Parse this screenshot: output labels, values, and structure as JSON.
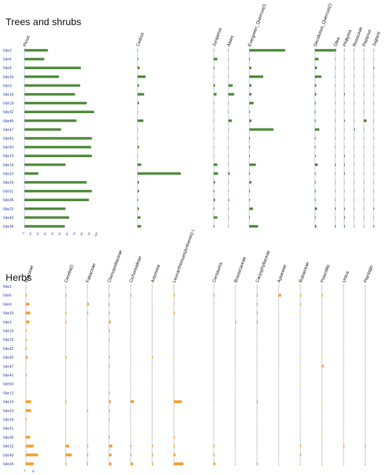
{
  "chart_data": [
    {
      "type": "bar",
      "title": "Trees and shrubs",
      "color": "#4e8a3a",
      "sites": [
        "Site2",
        "Site6",
        "Site9",
        "Site33",
        "Site3",
        "Site16",
        "Site19",
        "Site32",
        "Site45",
        "Site47",
        "Site41",
        "Site50",
        "Site13",
        "Site14",
        "Site23",
        "Site29",
        "Site31",
        "Site35",
        "Site22",
        "Site49",
        "Site34"
      ],
      "series": [
        {
          "name": "Pinus",
          "values": [
            32,
            27,
            77,
            47,
            76,
            69,
            85,
            95,
            71,
            50,
            92,
            91,
            92,
            56,
            19,
            85,
            92,
            88,
            56,
            61,
            55
          ]
        },
        {
          "name": "Cedrus",
          "values": [
            0,
            1,
            3,
            11,
            2,
            9,
            2,
            0,
            8,
            0,
            0,
            2,
            0,
            5,
            59,
            2,
            2,
            1,
            2,
            4,
            5
          ]
        },
        {
          "name": "Juniperus",
          "values": [
            0,
            5,
            1,
            0,
            2,
            4,
            0,
            0,
            0,
            0,
            0,
            0,
            0,
            5,
            6,
            2,
            1,
            2,
            1,
            5,
            1
          ]
        },
        {
          "name": "Abies",
          "values": [
            0,
            0,
            0,
            0,
            6,
            8,
            0,
            0,
            5,
            0,
            0,
            0,
            0,
            0,
            2,
            0,
            0,
            1,
            0,
            0,
            0
          ]
        },
        {
          "name": "Evergreen_Quercus(I)",
          "values": [
            49,
            1,
            3,
            19,
            3,
            3,
            6,
            1,
            3,
            33,
            1,
            1,
            1,
            9,
            1,
            3,
            1,
            1,
            5,
            1,
            12
          ]
        },
        {
          "name": "Deciduous_Quercus(I)",
          "values": [
            29,
            5,
            3,
            9,
            2,
            2,
            1,
            1,
            1,
            6,
            1,
            1,
            1,
            4,
            1,
            1,
            1,
            1,
            3,
            1,
            2
          ]
        },
        {
          "name": "Olea",
          "values": [
            1,
            0,
            0,
            0,
            0,
            0,
            0,
            0,
            0,
            0,
            0,
            0,
            0,
            1,
            0,
            0,
            0,
            0,
            1,
            0,
            1
          ]
        },
        {
          "name": "Phillyrea",
          "values": [
            0,
            0,
            0,
            0,
            0,
            1,
            0,
            0,
            1,
            0,
            0,
            0,
            1,
            1,
            1,
            0,
            0,
            0,
            1,
            1,
            1
          ]
        },
        {
          "name": "Rosaceae",
          "values": [
            0,
            0,
            0,
            0,
            0,
            0,
            0,
            0,
            0,
            1,
            0,
            0,
            0,
            0,
            0,
            0,
            0,
            0,
            0,
            0,
            0
          ]
        },
        {
          "name": "Platanus",
          "values": [
            0,
            0,
            0,
            0,
            0,
            0,
            0,
            0,
            4,
            0,
            0,
            0,
            0,
            0,
            0,
            0,
            0,
            0,
            0,
            0,
            0
          ]
        },
        {
          "name": "Juglans",
          "values": [
            0,
            0,
            1,
            0,
            0,
            0,
            0,
            0,
            0,
            0,
            0,
            0,
            0,
            0,
            0,
            0,
            0,
            0,
            1,
            0,
            1
          ]
        }
      ],
      "tick_labels": [
        "0",
        "10",
        "20",
        "30",
        "40",
        "50",
        "60",
        "70",
        "80",
        "90",
        "100"
      ]
    },
    {
      "type": "bar",
      "title": "Herbs",
      "color": "#f5a030",
      "sites": [
        "Site2",
        "Site6",
        "Site9",
        "Site33",
        "Site3",
        "Site16",
        "Site19",
        "Site32",
        "Site45",
        "Site47",
        "Site41",
        "Site50",
        "Site13",
        "Site14",
        "Site23",
        "Site29",
        "Site31",
        "Site35",
        "Site22",
        "Site49",
        "Site34"
      ],
      "series": [
        {
          "name": "Poaceae",
          "values": [
            0,
            1,
            4,
            5,
            4,
            1,
            1,
            1,
            2,
            0,
            1,
            0,
            0,
            6,
            6,
            1,
            0,
            5,
            9,
            14,
            9
          ]
        },
        {
          "name": "Cerelia(I)",
          "values": [
            0,
            1,
            0,
            1,
            1,
            0,
            0,
            0,
            1,
            0,
            0,
            0,
            0,
            1,
            0,
            0,
            0,
            0,
            4,
            7,
            1
          ]
        },
        {
          "name": "Fabaceae",
          "values": [
            0,
            0,
            2,
            1,
            0,
            0,
            0,
            0,
            0,
            0,
            0,
            0,
            0,
            0,
            1,
            0,
            0,
            0,
            1,
            1,
            1
          ]
        },
        {
          "name": "Chenopodiaceae",
          "values": [
            0,
            1,
            1,
            1,
            2,
            1,
            1,
            0,
            1,
            1,
            0,
            0,
            1,
            2,
            1,
            1,
            0,
            1,
            4,
            3,
            3
          ]
        },
        {
          "name": "Cichorioideae",
          "values": [
            0,
            1,
            0,
            0,
            0,
            0,
            0,
            0,
            0,
            0,
            0,
            0,
            0,
            4,
            0,
            0,
            0,
            0,
            1,
            1,
            3
          ]
        },
        {
          "name": "Artemisia",
          "values": [
            0,
            0,
            0,
            0,
            0,
            0,
            0,
            0,
            1,
            0,
            0,
            0,
            0,
            0,
            0,
            0,
            0,
            0,
            1,
            1,
            1
          ]
        },
        {
          "name": "Leucanthemum(Anthemis) t.",
          "values": [
            0,
            1,
            0,
            1,
            0,
            0,
            0,
            0,
            0,
            0,
            0,
            0,
            0,
            9,
            0,
            0,
            0,
            1,
            1,
            2,
            11
          ]
        },
        {
          "name": "Centaurea",
          "values": [
            0,
            1,
            0,
            0,
            0,
            0,
            0,
            0,
            0,
            0,
            0,
            0,
            0,
            0,
            0,
            0,
            0,
            0,
            1,
            1,
            2
          ]
        },
        {
          "name": "Brassicaceae",
          "values": [
            0,
            0,
            0,
            0,
            1,
            0,
            0,
            0,
            0,
            0,
            0,
            0,
            0,
            0,
            0,
            0,
            0,
            0,
            0,
            0,
            0
          ]
        },
        {
          "name": "Caryophyllaceae",
          "values": [
            0,
            1,
            1,
            1,
            1,
            0,
            0,
            0,
            0,
            0,
            0,
            0,
            0,
            1,
            0,
            0,
            0,
            0,
            0,
            0,
            1
          ]
        },
        {
          "name": "Apiaceae",
          "values": [
            0,
            3,
            0,
            0,
            0,
            0,
            0,
            0,
            0,
            0,
            0,
            0,
            0,
            0,
            0,
            0,
            0,
            0,
            0,
            0,
            0
          ]
        },
        {
          "name": "Rubiaceae",
          "values": [
            0,
            1,
            1,
            0,
            0,
            0,
            0,
            0,
            0,
            0,
            0,
            0,
            0,
            0,
            0,
            0,
            0,
            0,
            1,
            1,
            0
          ]
        },
        {
          "name": "Potentilla",
          "values": [
            0,
            1,
            0,
            0,
            0,
            0,
            0,
            0,
            0,
            2,
            0,
            0,
            0,
            0,
            0,
            0,
            0,
            0,
            0,
            0,
            0
          ]
        },
        {
          "name": "Urtica",
          "values": [
            0,
            0,
            0,
            0,
            0,
            0,
            0,
            0,
            0,
            0,
            0,
            0,
            0,
            0,
            0,
            0,
            0,
            0,
            1,
            0,
            0
          ]
        },
        {
          "name": "Plantago",
          "values": [
            0,
            0,
            0,
            0,
            0,
            0,
            0,
            0,
            0,
            0,
            0,
            0,
            0,
            0,
            0,
            0,
            0,
            0,
            1,
            0,
            0
          ]
        }
      ],
      "tick_labels": [
        "0",
        "10"
      ]
    }
  ]
}
